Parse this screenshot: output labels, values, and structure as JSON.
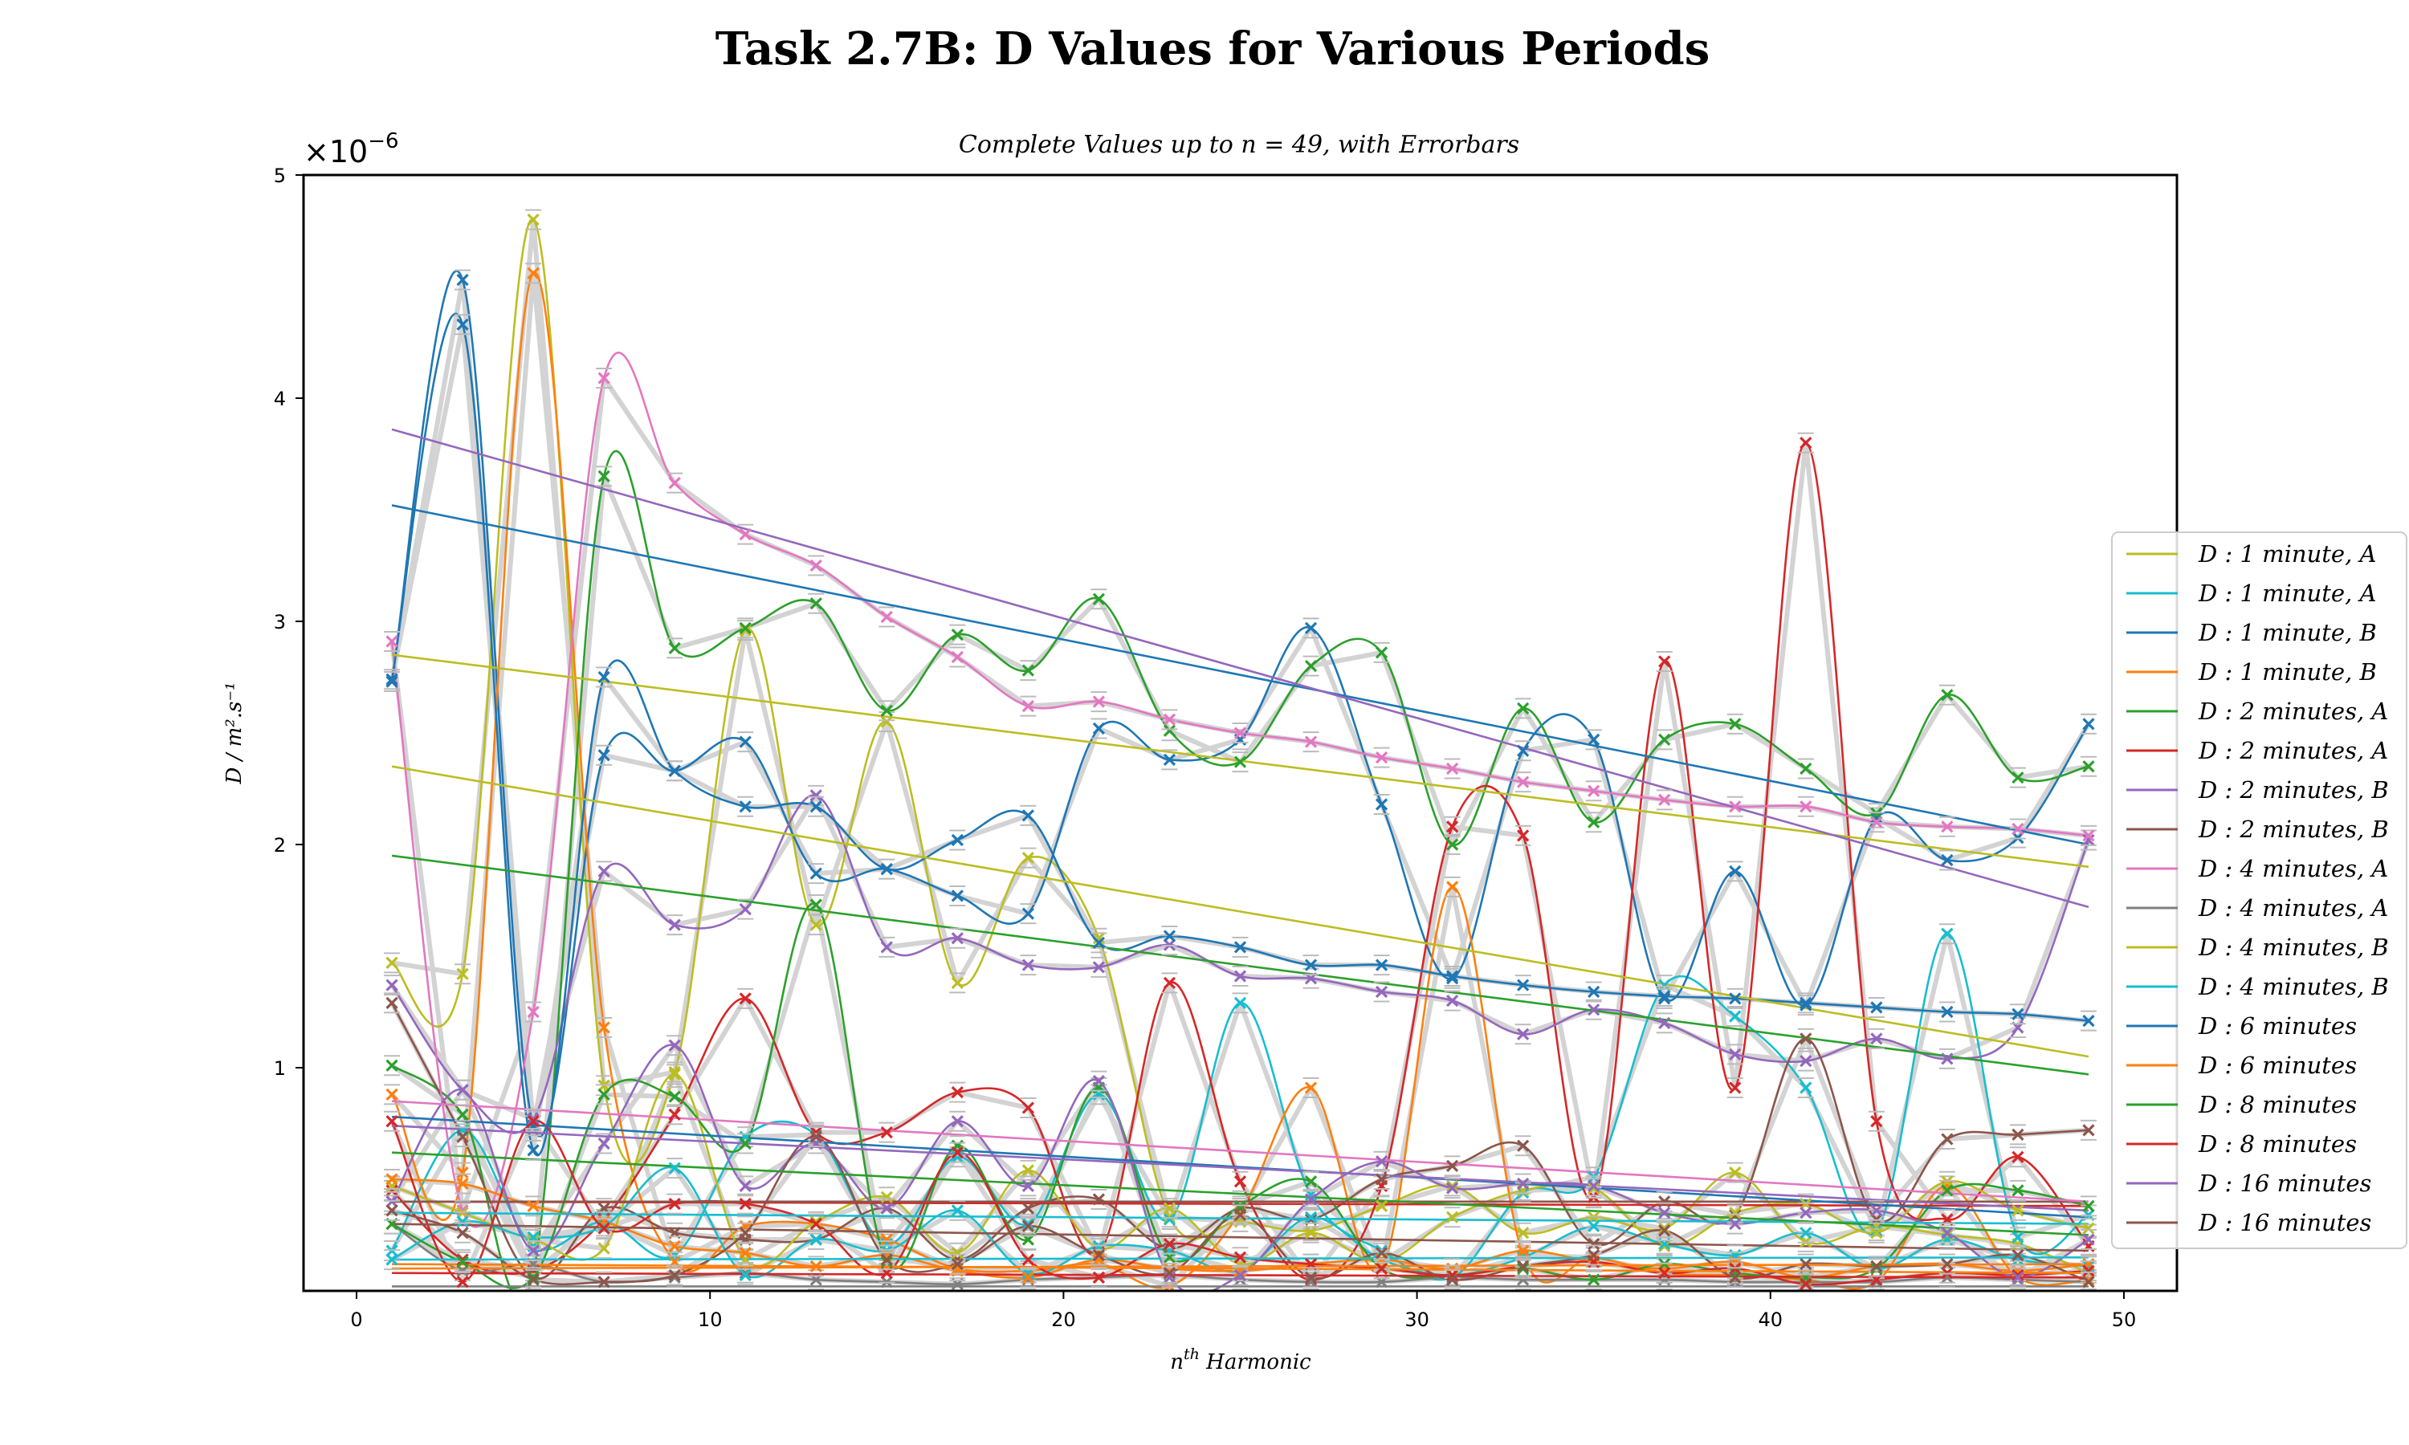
{
  "chart_data": {
    "type": "line",
    "title": "Task 2.7B: D Values for Various Periods",
    "subtitle": "Complete Values up to n = 49, with Errorbars",
    "xlabel_base": "n",
    "xlabel_sup": "th",
    "xlabel_rest": " Harmonic",
    "ylabel": "D / m².s⁻¹",
    "y_offset_text": "×10",
    "y_offset_exp": "−6",
    "xlim": [
      -1.5,
      51.5
    ],
    "ylim": [
      0,
      5
    ],
    "x_ticks": [
      0,
      10,
      20,
      30,
      40,
      50
    ],
    "y_ticks": [
      1,
      2,
      3,
      4,
      5
    ],
    "grid": false,
    "legend_position": "right",
    "harmonics": [
      1,
      3,
      5,
      7,
      9,
      11,
      13,
      15,
      17,
      19,
      21,
      23,
      25,
      27,
      29,
      31,
      33,
      35,
      37,
      39,
      41,
      43,
      45,
      47,
      49
    ],
    "series": [
      {
        "name": "D : 1 minute, A",
        "color": "#bcbd22",
        "values": [
          1.47,
          1.42,
          4.8,
          0.92,
          0.98,
          2.96,
          1.64,
          2.55,
          1.38,
          1.94,
          1.58,
          0.33,
          0.31,
          0.27,
          0.38,
          0.47,
          0.26,
          0.33,
          0.28,
          0.53,
          0.22,
          0.29,
          0.25,
          0.21,
          0.08
        ],
        "trend": [
          2.85,
          1.9
        ]
      },
      {
        "name": "D : 1 minute, A",
        "color": "#17becf",
        "values": [
          0.18,
          0.72,
          0.2,
          0.31,
          0.16,
          0.69,
          0.7,
          0.21,
          0.6,
          0.3,
          0.88,
          0.32,
          1.29,
          0.43,
          0.18,
          0.06,
          0.44,
          0.51,
          1.37,
          1.23,
          0.91,
          0.27,
          1.6,
          0.24,
          0.34
        ],
        "trend": [
          0.35,
          0.3
        ]
      },
      {
        "name": "D : 1 minute, B",
        "color": "#1f77b4",
        "values": [
          2.73,
          4.53,
          0.74,
          2.4,
          2.33,
          2.46,
          1.87,
          1.89,
          1.77,
          1.69,
          2.52,
          2.38,
          2.47,
          2.97,
          2.18,
          1.4,
          2.42,
          2.47,
          1.31,
          1.88,
          1.28,
          2.12,
          1.93,
          2.03,
          2.54
        ],
        "trend": [
          3.52,
          2.0
        ]
      },
      {
        "name": "D : 1 minute, B",
        "color": "#ff7f0e",
        "values": [
          0.88,
          0.53,
          4.56,
          1.18,
          0.13,
          0.29,
          0.3,
          0.23,
          0.1,
          0.09,
          0.12,
          0.02,
          0.35,
          0.91,
          0.1,
          1.81,
          0.16,
          0.15,
          0.08,
          0.07,
          0.05,
          0.04,
          0.47,
          0.06,
          0.05
        ],
        "trend": [
          0.12,
          0.08
        ]
      },
      {
        "name": "D : 2 minutes, A",
        "color": "#2ca02c",
        "values": [
          1.01,
          0.79,
          0.08,
          3.65,
          2.88,
          2.97,
          3.08,
          2.6,
          2.94,
          2.78,
          3.1,
          2.51,
          2.37,
          2.8,
          2.86,
          2.0,
          2.61,
          2.1,
          2.47,
          2.54,
          2.34,
          2.14,
          2.67,
          2.3,
          2.35
        ],
        "trend": [
          1.95,
          0.97
        ]
      },
      {
        "name": "D : 2 minutes, A",
        "color": "#d62728",
        "values": [
          0.45,
          0.14,
          0.09,
          0.32,
          0.79,
          1.31,
          0.71,
          0.71,
          0.89,
          0.82,
          0.17,
          1.38,
          0.49,
          0.05,
          0.47,
          2.08,
          2.04,
          0.42,
          2.82,
          0.91,
          3.8,
          0.76,
          0.32,
          0.6,
          0.2
        ],
        "trend": [
          0.4,
          0.38
        ]
      },
      {
        "name": "D : 2 minutes, B",
        "color": "#9467bd",
        "values": [
          1.37,
          0.9,
          0.77,
          1.88,
          1.64,
          1.71,
          2.22,
          1.54,
          1.58,
          1.46,
          1.45,
          1.55,
          1.41,
          1.4,
          1.34,
          1.3,
          1.15,
          1.26,
          1.2,
          1.06,
          1.03,
          1.13,
          1.04,
          1.18,
          2.02
        ],
        "trend": [
          3.86,
          1.72
        ]
      },
      {
        "name": "D : 2 minutes, B",
        "color": "#8c564b",
        "values": [
          1.29,
          0.69,
          0.06,
          0.37,
          0.26,
          0.23,
          0.23,
          0.37,
          0.14,
          0.37,
          0.41,
          0.19,
          0.37,
          0.32,
          0.5,
          0.56,
          0.65,
          0.21,
          0.4,
          0.34,
          1.13,
          0.32,
          0.68,
          0.7,
          0.72
        ],
        "trend": [
          0.4,
          0.4
        ]
      },
      {
        "name": "D : 4 minutes, A",
        "color": "#e377c2",
        "values": [
          2.91,
          0.36,
          1.25,
          4.09,
          3.62,
          3.39,
          3.25,
          3.02,
          2.84,
          2.62,
          2.64,
          2.56,
          2.5,
          2.46,
          2.39,
          2.34,
          2.28,
          2.24,
          2.2,
          2.17,
          2.17,
          2.1,
          2.08,
          2.07,
          2.04
        ],
        "trend": [
          0.85,
          0.4
        ]
      },
      {
        "name": "D : 4 minutes, A",
        "color": "#7f7f7f",
        "values": [
          0.3,
          0.09,
          0.12,
          0.04,
          0.06,
          0.08,
          0.05,
          0.04,
          0.03,
          0.05,
          0.06,
          0.07,
          0.05,
          0.04,
          0.04,
          0.06,
          0.05,
          0.05,
          0.05,
          0.04,
          0.04,
          0.04,
          0.06,
          0.05,
          0.04
        ],
        "trend": [
          0.02,
          0.02
        ]
      },
      {
        "name": "D : 4 minutes, B",
        "color": "#bcbd22",
        "values": [
          0.47,
          0.35,
          0.23,
          0.19,
          0.97,
          0.14,
          0.31,
          0.42,
          0.17,
          0.54,
          0.19,
          0.37,
          0.12,
          0.26,
          0.13,
          0.33,
          0.45,
          0.46,
          0.2,
          0.35,
          0.39,
          0.26,
          0.49,
          0.36,
          0.28
        ],
        "trend": [
          2.35,
          1.05
        ]
      },
      {
        "name": "D : 4 minutes, B",
        "color": "#17becf",
        "values": [
          0.14,
          0.31,
          0.24,
          0.29,
          0.55,
          0.07,
          0.23,
          0.18,
          0.36,
          0.08,
          0.2,
          0.18,
          0.09,
          0.33,
          0.14,
          0.07,
          0.15,
          0.29,
          0.21,
          0.16,
          0.26,
          0.1,
          0.23,
          0.14,
          0.11
        ],
        "trend": [
          0.14,
          0.15
        ]
      },
      {
        "name": "D : 6 minutes",
        "color": "#1f77b4",
        "values": [
          2.74,
          4.33,
          0.63,
          2.75,
          2.33,
          2.17,
          2.17,
          1.89,
          2.02,
          2.13,
          1.56,
          1.59,
          1.54,
          1.46,
          1.46,
          1.41,
          1.37,
          1.34,
          1.32,
          1.31,
          1.29,
          1.27,
          1.25,
          1.24,
          1.21
        ],
        "trend": [
          0.78,
          0.33
        ]
      },
      {
        "name": "D : 6 minutes",
        "color": "#ff7f0e",
        "values": [
          0.5,
          0.48,
          0.38,
          0.31,
          0.2,
          0.17,
          0.11,
          0.16,
          0.09,
          0.06,
          0.14,
          0.1,
          0.09,
          0.12,
          0.14,
          0.1,
          0.18,
          0.13,
          0.1,
          0.13,
          0.06,
          0.11,
          0.12,
          0.09,
          0.12
        ],
        "trend": [
          0.1,
          0.12
        ]
      },
      {
        "name": "D : 8 minutes",
        "color": "#2ca02c",
        "values": [
          0.3,
          0.13,
          0.06,
          0.88,
          0.87,
          0.66,
          1.73,
          0.13,
          0.65,
          0.23,
          0.91,
          0.15,
          0.38,
          0.49,
          0.1,
          0.07,
          0.1,
          0.05,
          0.12,
          0.08,
          0.06,
          0.1,
          0.45,
          0.45,
          0.38
        ],
        "trend": [
          0.62,
          0.25
        ]
      },
      {
        "name": "D : 8 minutes",
        "color": "#d62728",
        "values": [
          0.76,
          0.04,
          0.76,
          0.28,
          0.39,
          0.39,
          0.3,
          0.08,
          0.62,
          0.14,
          0.06,
          0.21,
          0.15,
          0.12,
          0.1,
          0.07,
          0.11,
          0.13,
          0.08,
          0.1,
          0.03,
          0.05,
          0.08,
          0.07,
          0.09
        ],
        "trend": [
          0.08,
          0.06
        ]
      },
      {
        "name": "D : 16 minutes",
        "color": "#9467bd",
        "values": [
          0.4,
          0.9,
          0.18,
          0.66,
          1.1,
          0.47,
          0.66,
          0.37,
          0.76,
          0.47,
          0.94,
          0.06,
          0.07,
          0.41,
          0.58,
          0.46,
          0.48,
          0.47,
          0.35,
          0.3,
          0.35,
          0.36,
          0.26,
          0.06,
          0.23
        ],
        "trend": [
          0.74,
          0.36
        ]
      },
      {
        "name": "D : 16 minutes",
        "color": "#8c564b",
        "values": [
          0.36,
          0.26,
          0.05,
          0.04,
          0.07,
          0.26,
          0.69,
          0.14,
          0.12,
          0.29,
          0.16,
          0.08,
          0.34,
          0.06,
          0.17,
          0.05,
          0.11,
          0.16,
          0.27,
          0.06,
          0.12,
          0.11,
          0.12,
          0.16,
          0.04
        ],
        "trend": [
          0.3,
          0.18
        ]
      }
    ]
  }
}
